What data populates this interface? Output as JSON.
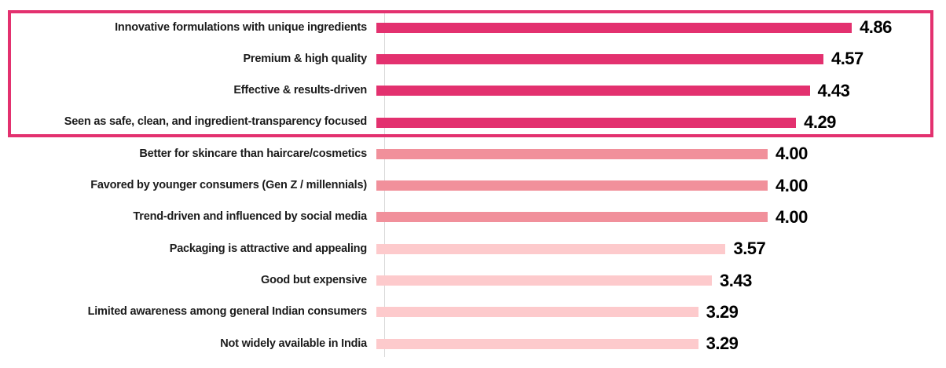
{
  "chart_data": {
    "type": "bar",
    "orientation": "horizontal",
    "title": "",
    "xlabel": "",
    "ylabel": "",
    "xlim": [
      0,
      5.75
    ],
    "grid": false,
    "legend": false,
    "categories": [
      "Innovative formulations with unique ingredients",
      "Premium & high quality",
      "Effective & results-driven",
      "Seen as safe, clean, and ingredient-transparency focused",
      "Better for skincare than haircare/cosmetics",
      "Favored by younger consumers (Gen Z / millennials)",
      "Trend-driven and influenced by social media",
      "Packaging is attractive and appealing",
      "Good but expensive",
      "Limited awareness among general Indian consumers",
      "Not widely available in India"
    ],
    "values": [
      4.86,
      4.57,
      4.43,
      4.29,
      4.0,
      4.0,
      4.0,
      3.57,
      3.43,
      3.29,
      3.29
    ],
    "value_labels": [
      "4.86",
      "4.57",
      "4.43",
      "4.29",
      "4.00",
      "4.00",
      "4.00",
      "3.57",
      "3.43",
      "3.29",
      "3.29"
    ],
    "bar_tiers": [
      "high",
      "high",
      "high",
      "high",
      "mid",
      "mid",
      "mid",
      "low",
      "low",
      "low",
      "low"
    ],
    "tier_colors": {
      "high": "#e3316f",
      "mid": "#f1909b",
      "low": "#fdcacc"
    },
    "value_label_color": "#000000",
    "category_label_color": "#1b1b1b",
    "axis_line_color": "#d9d9d9",
    "highlight": {
      "highlighted_rows": [
        0,
        1,
        2,
        3
      ],
      "border_color": "#e3316f"
    }
  }
}
